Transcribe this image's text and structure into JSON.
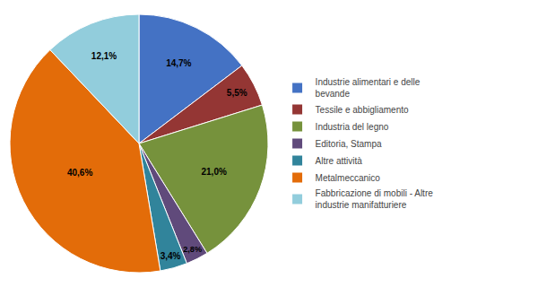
{
  "chart_data": {
    "type": "pie",
    "categories": [
      "Industrie alimentari e delle\nbevande",
      "Tessile e abbigliamento",
      "Industria del legno",
      "Editoria, Stampa",
      "Altre attività",
      "Metalmeccanico",
      "Fabbricazione di mobili - Altre\nindustrie manifatturiere"
    ],
    "values": [
      14.7,
      5.5,
      21.0,
      2.8,
      3.4,
      40.6,
      12.1
    ],
    "value_labels": [
      "14,7%",
      "5,5%",
      "21,0%",
      "2,8%",
      "3,4%",
      "40,6%",
      "12,1%"
    ],
    "colors": [
      "#4472C4",
      "#943634",
      "#76923C",
      "#604A7B",
      "#31849B",
      "#E36C09",
      "#92CDDC"
    ],
    "data_labels": true,
    "legend": "right"
  }
}
